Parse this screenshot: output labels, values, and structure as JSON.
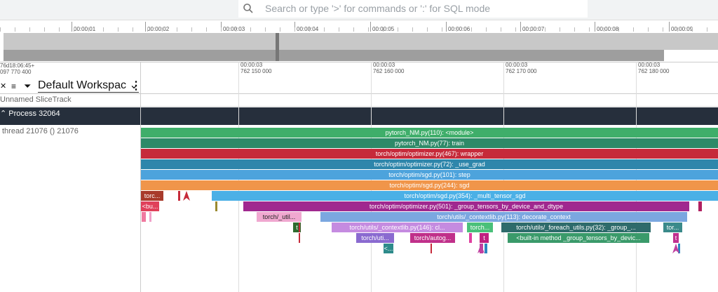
{
  "search": {
    "placeholder": "Search or type '>' for commands or ':' for SQL mode"
  },
  "overview": {
    "ticks": [
      "00:00:01",
      "00:00:02",
      "00:00:03",
      "00:00:04",
      "00:00:05",
      "00:00:06",
      "00:00:07",
      "00:00:08",
      "00:00:09"
    ]
  },
  "timeline": {
    "offset": [
      "76d18:06:45+",
      "097 770 400"
    ],
    "ticks": [
      [
        "00:00:03",
        "762 150 000"
      ],
      [
        "00:00:03",
        "762 160 000"
      ],
      [
        "00:00:03",
        "762 170 000"
      ],
      [
        "00:00:03",
        "762 180 000"
      ]
    ]
  },
  "workspace": {
    "name": "Default Workspac"
  },
  "tracks": {
    "sliceTrack": "Unnamed SliceTrack",
    "process": "Process 32064",
    "thread": "thread 21076 () 21076"
  },
  "slices": [
    "pytorch_NM.py(110): <module>",
    "pytorch_NM.py(77): train",
    "torch/optim/optimizer.py(467): wrapper",
    "torch/optim/optimizer.py(72): _use_grad",
    "torch/optim/sgd.py(101): step",
    "torch/optim/sgd.py(244): sgd",
    "torc...",
    "torch/optim/sgd.py(354): _multi_tensor_sgd",
    "<bu...",
    "torch/optim/optimizer.py(501): _group_tensors_by_device_and_dtype",
    "torch/_util...",
    "torch/utils/_contextlib.py(113): decorate_context",
    "t",
    "torch/utils/_contextlib.py(146): cl...",
    "torch...",
    "torch/utils/_foreach_utils.py(32): _group_...",
    "tor...",
    "torch/uti...",
    "torch/autog...",
    "t",
    "<built-in method _group_tensors_by_devic...",
    "t",
    "<..."
  ]
}
